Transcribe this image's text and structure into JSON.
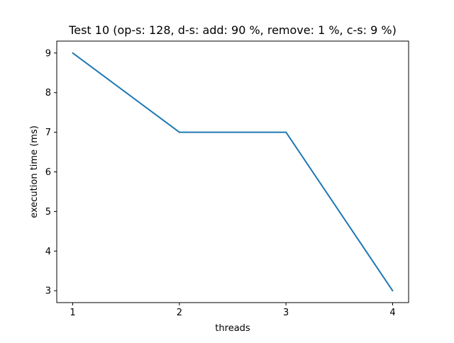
{
  "chart_data": {
    "type": "line",
    "title": "Test 10 (op-s: 128, d-s: add: 90 %, remove: 1 %, c-s: 9 %)",
    "xlabel": "threads",
    "ylabel": "execution time (ms)",
    "x": [
      1,
      2,
      3,
      4
    ],
    "xticks": [
      "1",
      "2",
      "3",
      "4"
    ],
    "yticks": [
      "3",
      "4",
      "5",
      "6",
      "7",
      "8",
      "9"
    ],
    "xlim": [
      0.85,
      4.15
    ],
    "ylim": [
      2.7,
      9.3
    ],
    "grid": false,
    "series": [
      {
        "values": [
          9,
          7,
          7,
          3
        ],
        "color": "#1f77b4"
      }
    ]
  }
}
